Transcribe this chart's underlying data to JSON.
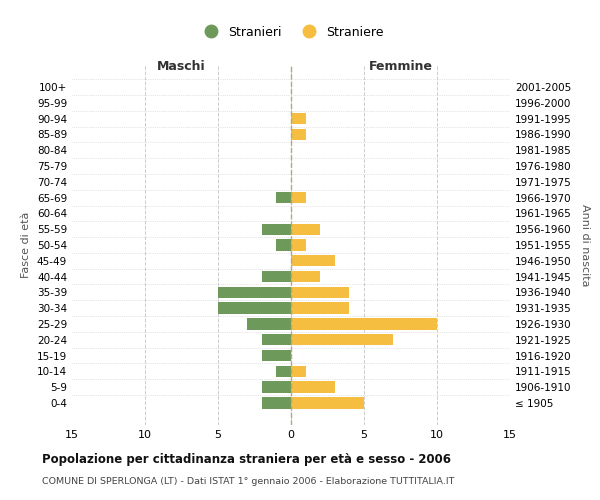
{
  "age_groups": [
    "100+",
    "95-99",
    "90-94",
    "85-89",
    "80-84",
    "75-79",
    "70-74",
    "65-69",
    "60-64",
    "55-59",
    "50-54",
    "45-49",
    "40-44",
    "35-39",
    "30-34",
    "25-29",
    "20-24",
    "15-19",
    "10-14",
    "5-9",
    "0-4"
  ],
  "birth_years": [
    "≤ 1905",
    "1906-1910",
    "1911-1915",
    "1916-1920",
    "1921-1925",
    "1926-1930",
    "1931-1935",
    "1936-1940",
    "1941-1945",
    "1946-1950",
    "1951-1955",
    "1956-1960",
    "1961-1965",
    "1966-1970",
    "1971-1975",
    "1976-1980",
    "1981-1985",
    "1986-1990",
    "1991-1995",
    "1996-2000",
    "2001-2005"
  ],
  "maschi": [
    0,
    0,
    0,
    0,
    0,
    0,
    0,
    1,
    0,
    2,
    1,
    0,
    2,
    5,
    5,
    3,
    2,
    2,
    1,
    2,
    2
  ],
  "femmine": [
    0,
    0,
    1,
    1,
    0,
    0,
    0,
    1,
    0,
    2,
    1,
    3,
    2,
    4,
    4,
    10,
    7,
    0,
    1,
    3,
    5
  ],
  "color_maschi": "#6d9a5a",
  "color_femmine": "#f5be41",
  "title": "Popolazione per cittadinanza straniera per età e sesso - 2006",
  "subtitle": "COMUNE DI SPERLONGA (LT) - Dati ISTAT 1° gennaio 2006 - Elaborazione TUTTITALIA.IT",
  "xlabel_left": "Maschi",
  "xlabel_right": "Femmine",
  "ylabel_left": "Fasce di età",
  "ylabel_right": "Anni di nascita",
  "legend_maschi": "Stranieri",
  "legend_femmine": "Straniere",
  "xlim": 15,
  "background_color": "#ffffff",
  "grid_color": "#cccccc"
}
